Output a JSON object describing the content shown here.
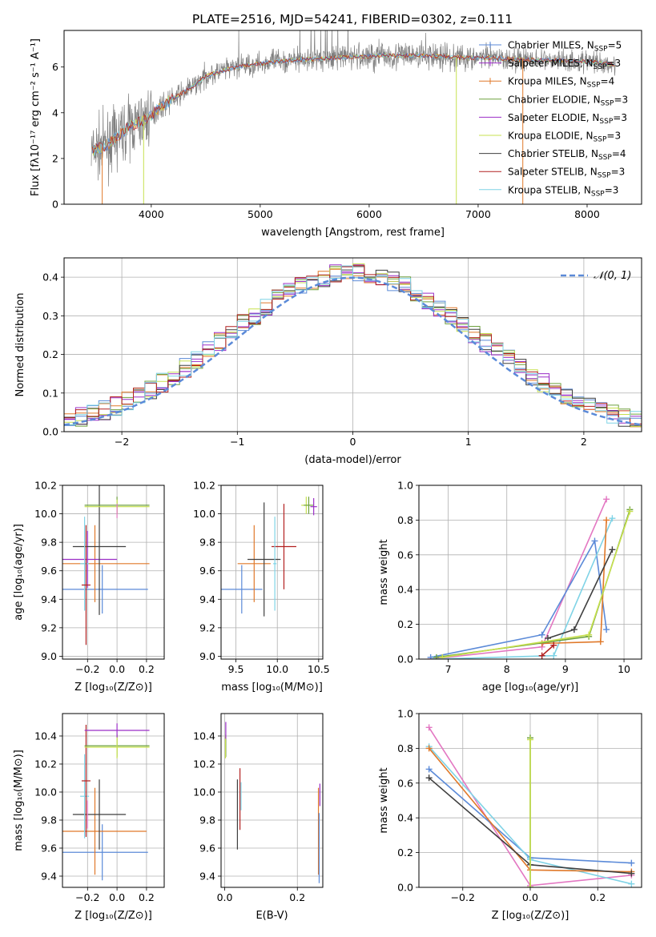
{
  "title": "PLATE=2516, MJD=54241, FIBERID=0302, z=0.111",
  "colors": {
    "chabrier_miles": "#5b8ad8",
    "salpeter_miles": "#9b2fc7",
    "kroupa_miles": "#e0792a",
    "chabrier_elodie": "#6ea13f",
    "salpeter_elodie": "#9b2fc7",
    "kroupa_elodie": "#c7e04f",
    "chabrier_stelib": "#3f3f3f",
    "salpeter_stelib": "#b22020",
    "kroupa_stelib": "#7fd3e6",
    "data_gray": "#808080",
    "pink": "#e377c2",
    "normal_curve": "#5b8ad8"
  },
  "chart_data": [
    {
      "id": "spectrum",
      "type": "line",
      "xlabel": "wavelength [Angstrom, rest frame]",
      "ylabel": "Flux [fλ10⁻¹⁷ erg cm⁻² s⁻¹ A⁻¹]",
      "xlim": [
        3200,
        8500
      ],
      "ylim": [
        0,
        7.6
      ],
      "xticks": [
        4000,
        5000,
        6000,
        7000,
        8000
      ],
      "yticks": [
        0,
        2,
        4,
        6
      ],
      "grid": false,
      "legend_position": "upper-right",
      "legend": [
        "Chabrier MILES, N_SSP=5",
        "Salpeter MILES, N_SSP=3",
        "Kroupa MILES, N_SSP=4",
        "Chabrier ELODIE, N_SSP=3",
        "Salpeter ELODIE, N_SSP=3",
        "Kroupa ELODIE, N_SSP=3",
        "Chabrier STELIB, N_SSP=4",
        "Salpeter STELIB, N_SSP=3",
        "Kroupa STELIB, N_SSP=3"
      ],
      "continuum": {
        "x": [
          3450,
          3600,
          3700,
          3800,
          3900,
          4000,
          4100,
          4200,
          4300,
          4400,
          4500,
          4700,
          4900,
          5100,
          5300,
          5500,
          5700,
          5900,
          6100,
          6300,
          6500,
          6700,
          6900,
          7100,
          7300,
          7500,
          7700,
          7900,
          8100,
          8250
        ],
        "y": [
          2.3,
          2.6,
          3.0,
          3.4,
          3.6,
          3.9,
          4.3,
          4.6,
          4.9,
          5.2,
          5.6,
          5.9,
          6.1,
          6.2,
          6.3,
          6.35,
          6.4,
          6.45,
          6.5,
          6.5,
          6.5,
          6.45,
          6.4,
          6.4,
          6.35,
          6.3,
          6.3,
          6.25,
          6.2,
          6.1
        ]
      }
    },
    {
      "id": "residuals",
      "type": "histogram",
      "xlabel": "(data-model)/error",
      "ylabel": "Normed distribution",
      "xlim": [
        -2.5,
        2.5
      ],
      "ylim": [
        0,
        0.45
      ],
      "xticks": [
        -2,
        -1,
        0,
        1,
        2
      ],
      "yticks": [
        0.0,
        0.1,
        0.2,
        0.3,
        0.4
      ],
      "grid": true,
      "legend": [
        "𝒩(0, 1)"
      ],
      "legend_position": "top-right",
      "bin_width": 0.1
    },
    {
      "id": "age_vs_Z",
      "type": "errorbar",
      "xlabel": "Z [log₁₀(Z/Z⊙)]",
      "ylabel": "age  [log₁₀(age/yr)]",
      "xlim": [
        -0.37,
        0.32
      ],
      "ylim": [
        8.98,
        10.2
      ],
      "xticks": [
        -0.2,
        0.0,
        0.2
      ],
      "yticks": [
        9.0,
        9.2,
        9.4,
        9.6,
        9.8,
        10.0,
        10.2
      ],
      "grid": true,
      "points": [
        {
          "color": "chabrier_miles",
          "x": -0.1,
          "y": 9.47,
          "xerr": 0.31,
          "yerr": 0.17
        },
        {
          "color": "kroupa_miles",
          "x": -0.15,
          "y": 9.65,
          "xerr": 0.37,
          "yerr": 0.27
        },
        {
          "color": "salpeter_miles",
          "x": -0.2,
          "y": 9.68,
          "xerr": 0.2,
          "yerr": 0.2
        },
        {
          "color": "chabrier_stelib",
          "x": -0.12,
          "y": 9.77,
          "xerr": 0.18,
          "yerr": 0.48
        },
        {
          "color": "kroupa_stelib",
          "x": -0.22,
          "y": 9.65,
          "xerr": 0.03,
          "yerr": 0.33
        },
        {
          "color": "salpeter_stelib",
          "x": -0.21,
          "y": 9.5,
          "xerr": 0.03,
          "yerr": 0.42
        },
        {
          "color": "chabrier_elodie",
          "x": 0.0,
          "y": 10.06,
          "xerr": 0.22,
          "yerr": 0.06
        },
        {
          "color": "kroupa_elodie",
          "x": 0.0,
          "y": 10.05,
          "xerr": 0.22,
          "yerr": 0.05
        },
        {
          "color": "pink",
          "x": 0.0,
          "y": 10.02,
          "xerr": 0.0,
          "yerr": 0.05
        }
      ]
    },
    {
      "id": "age_vs_mass",
      "type": "errorbar",
      "xlabel": "mass [log₁₀(M/M⊙)]",
      "ylabel": "",
      "xlim": [
        9.32,
        10.55
      ],
      "ylim": [
        8.98,
        10.2
      ],
      "xticks": [
        9.5,
        10.0,
        10.5
      ],
      "yticks": [
        9.0,
        9.2,
        9.4,
        9.6,
        9.8,
        10.0,
        10.2
      ],
      "grid": true,
      "points": [
        {
          "color": "chabrier_miles",
          "x": 9.57,
          "y": 9.47,
          "xerr": 0.25,
          "yerr": 0.17
        },
        {
          "color": "kroupa_miles",
          "x": 9.72,
          "y": 9.65,
          "xerr": 0.2,
          "yerr": 0.27
        },
        {
          "color": "salpeter_stelib",
          "x": 10.08,
          "y": 9.77,
          "xerr": 0.15,
          "yerr": 0.3
        },
        {
          "color": "chabrier_stelib",
          "x": 9.84,
          "y": 9.68,
          "xerr": 0.2,
          "yerr": 0.4
        },
        {
          "color": "kroupa_stelib",
          "x": 9.97,
          "y": 9.65,
          "xerr": 0.02,
          "yerr": 0.33
        },
        {
          "color": "kroupa_elodie",
          "x": 10.35,
          "y": 10.06,
          "xerr": 0.06,
          "yerr": 0.06
        },
        {
          "color": "chabrier_elodie",
          "x": 10.38,
          "y": 10.06,
          "xerr": 0.06,
          "yerr": 0.06
        },
        {
          "color": "salpeter_elodie",
          "x": 10.44,
          "y": 10.05,
          "xerr": 0.04,
          "yerr": 0.06
        }
      ]
    },
    {
      "id": "weight_vs_age",
      "type": "line",
      "xlabel": "age  [log₁₀(age/yr)]",
      "ylabel": "mass weight",
      "xlim": [
        6.5,
        10.3
      ],
      "ylim": [
        0,
        1.0
      ],
      "xticks": [
        7,
        8,
        9,
        10
      ],
      "yticks": [
        0.0,
        0.2,
        0.4,
        0.6,
        0.8,
        1.0
      ],
      "grid": true,
      "series": [
        {
          "color": "pink",
          "x": [
            6.7,
            8.6,
            9.7
          ],
          "y": [
            0.0,
            0.07,
            0.92
          ]
        },
        {
          "color": "chabrier_miles",
          "x": [
            6.7,
            8.6,
            9.5,
            9.7
          ],
          "y": [
            0.01,
            0.14,
            0.68,
            0.17
          ]
        },
        {
          "color": "kroupa_stelib",
          "x": [
            6.75,
            8.8,
            9.8
          ],
          "y": [
            0.0,
            0.02,
            0.81
          ]
        },
        {
          "color": "kroupa_miles",
          "x": [
            8.6,
            9.6,
            9.7
          ],
          "y": [
            0.09,
            0.1,
            0.8
          ]
        },
        {
          "color": "chabrier_stelib",
          "x": [
            8.7,
            9.15,
            9.8
          ],
          "y": [
            0.12,
            0.17,
            0.63
          ]
        },
        {
          "color": "chabrier_elodie",
          "x": [
            6.8,
            9.4,
            10.1
          ],
          "y": [
            0.01,
            0.13,
            0.86
          ]
        },
        {
          "color": "kroupa_elodie",
          "x": [
            6.9,
            9.4,
            10.1
          ],
          "y": [
            0.01,
            0.14,
            0.85
          ]
        },
        {
          "color": "salpeter_stelib",
          "x": [
            8.6,
            8.8
          ],
          "y": [
            0.02,
            0.08
          ]
        }
      ]
    },
    {
      "id": "mass_vs_Z",
      "type": "errorbar",
      "xlabel": "Z [log₁₀(Z/Z⊙)]",
      "ylabel": "mass [log₁₀(M/M⊙)]",
      "xlim": [
        -0.37,
        0.32
      ],
      "ylim": [
        9.32,
        10.56
      ],
      "xticks": [
        -0.2,
        0.0,
        0.2
      ],
      "yticks": [
        9.4,
        9.6,
        9.8,
        10.0,
        10.2,
        10.4
      ],
      "grid": true,
      "points": [
        {
          "color": "chabrier_miles",
          "x": -0.1,
          "y": 9.57,
          "xerr": 0.31,
          "yerr": 0.2
        },
        {
          "color": "kroupa_miles",
          "x": -0.15,
          "y": 9.72,
          "xerr": 0.35,
          "yerr": 0.31
        },
        {
          "color": "chabrier_stelib",
          "x": -0.12,
          "y": 9.84,
          "xerr": 0.18,
          "yerr": 0.25
        },
        {
          "color": "kroupa_stelib",
          "x": -0.22,
          "y": 9.97,
          "xerr": 0.03,
          "yerr": 0.3
        },
        {
          "color": "salpeter_stelib",
          "x": -0.21,
          "y": 10.08,
          "xerr": 0.03,
          "yerr": 0.4
        },
        {
          "color": "chabrier_elodie",
          "x": 0.0,
          "y": 10.33,
          "xerr": 0.22,
          "yerr": 0.08
        },
        {
          "color": "kroupa_elodie",
          "x": 0.0,
          "y": 10.32,
          "xerr": 0.22,
          "yerr": 0.08
        },
        {
          "color": "salpeter_elodie",
          "x": 0.0,
          "y": 10.44,
          "xerr": 0.22,
          "yerr": 0.05
        },
        {
          "color": "pink",
          "x": -0.2,
          "y": 9.84,
          "xerr": 0.0,
          "yerr": 0.1
        }
      ]
    },
    {
      "id": "mass_vs_ebv",
      "type": "errorbar",
      "xlabel": "E(B-V)",
      "ylabel": "",
      "xlim": [
        -0.01,
        0.27
      ],
      "ylim": [
        9.32,
        10.56
      ],
      "xticks": [
        0.0,
        0.2
      ],
      "yticks": [
        9.4,
        9.6,
        9.8,
        10.0,
        10.2,
        10.4
      ],
      "grid": true,
      "points": [
        {
          "color": "chabrier_elodie",
          "x": 0.003,
          "y": 10.33,
          "xerr": 0.0,
          "yerr": 0.08
        },
        {
          "color": "kroupa_elodie",
          "x": 0.002,
          "y": 10.32,
          "xerr": 0.0,
          "yerr": 0.08
        },
        {
          "color": "salpeter_elodie",
          "x": 0.003,
          "y": 10.44,
          "xerr": 0.0,
          "yerr": 0.06
        },
        {
          "color": "chabrier_stelib",
          "x": 0.035,
          "y": 9.84,
          "xerr": 0.0,
          "yerr": 0.25
        },
        {
          "color": "salpeter_stelib",
          "x": 0.042,
          "y": 9.95,
          "xerr": 0.0,
          "yerr": 0.22
        },
        {
          "color": "kroupa_stelib",
          "x": 0.045,
          "y": 9.97,
          "xerr": 0.0,
          "yerr": 0.1
        },
        {
          "color": "kroupa_miles",
          "x": 0.258,
          "y": 9.72,
          "xerr": 0.0,
          "yerr": 0.31
        },
        {
          "color": "chabrier_miles",
          "x": 0.26,
          "y": 9.6,
          "xerr": 0.0,
          "yerr": 0.25
        },
        {
          "color": "salpeter_miles",
          "x": 0.262,
          "y": 9.98,
          "xerr": 0.0,
          "yerr": 0.08
        }
      ]
    },
    {
      "id": "weight_vs_Z",
      "type": "line",
      "xlabel": "Z [log₁₀(Z/Z⊙)]",
      "ylabel": "mass weight",
      "xlim": [
        -0.33,
        0.33
      ],
      "ylim": [
        0,
        1.0
      ],
      "xticks": [
        -0.2,
        0.0,
        0.2
      ],
      "yticks": [
        0.0,
        0.2,
        0.4,
        0.6,
        0.8,
        1.0
      ],
      "grid": true,
      "series": [
        {
          "color": "pink",
          "x": [
            -0.3,
            0.0,
            0.3
          ],
          "y": [
            0.92,
            0.01,
            0.07
          ]
        },
        {
          "color": "chabrier_miles",
          "x": [
            -0.3,
            0.0,
            0.3
          ],
          "y": [
            0.68,
            0.17,
            0.14
          ]
        },
        {
          "color": "kroupa_stelib",
          "x": [
            -0.3,
            0.0,
            0.3
          ],
          "y": [
            0.81,
            0.16,
            0.02
          ]
        },
        {
          "color": "kroupa_miles",
          "x": [
            -0.3,
            0.0,
            0.3
          ],
          "y": [
            0.8,
            0.1,
            0.09
          ]
        },
        {
          "color": "chabrier_stelib",
          "x": [
            -0.3,
            0.0,
            0.3
          ],
          "y": [
            0.63,
            0.13,
            0.08
          ]
        },
        {
          "color": "chabrier_elodie",
          "x": [
            0.0,
            0.0
          ],
          "y": [
            0.0,
            0.86
          ]
        },
        {
          "color": "kroupa_elodie",
          "x": [
            0.0,
            0.0
          ],
          "y": [
            0.0,
            0.85
          ]
        }
      ]
    }
  ]
}
